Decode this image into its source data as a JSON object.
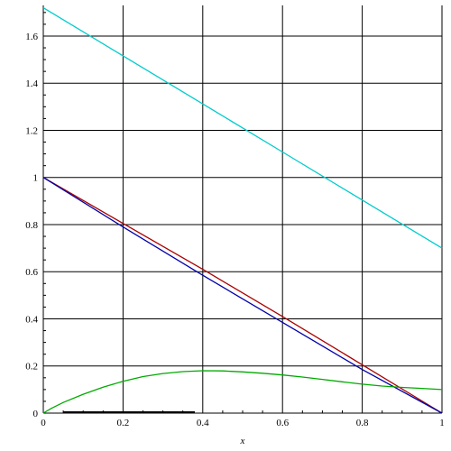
{
  "chart_data": {
    "type": "line",
    "xlabel": "x",
    "ylabel": "",
    "xlim": [
      0,
      1
    ],
    "ylim": [
      0,
      1.73
    ],
    "grid": true,
    "x_ticks": [
      0,
      0.2,
      0.4,
      0.6,
      0.8,
      1
    ],
    "x_tick_labels": [
      "0",
      "0.2",
      "0.4",
      "0.6",
      "0.8",
      "1"
    ],
    "y_ticks": [
      0,
      0.2,
      0.4,
      0.6,
      0.8,
      1,
      1.2,
      1.4,
      1.6
    ],
    "y_tick_labels": [
      "0",
      "0.2",
      "0.4",
      "0.6",
      "0.8",
      "1",
      "1.2",
      "1.4",
      "1.6"
    ],
    "series": [
      {
        "color": "#00cccc",
        "x": [
          0,
          0.2,
          0.4,
          0.6,
          0.8,
          1
        ],
        "y": [
          1.72,
          1.516,
          1.312,
          1.108,
          0.904,
          0.7
        ]
      },
      {
        "color": "#aa0000",
        "x": [
          0,
          0.2,
          0.4,
          0.6,
          0.8,
          1
        ],
        "y": [
          1,
          0.805,
          0.61,
          0.41,
          0.205,
          0
        ]
      },
      {
        "color": "#0000aa",
        "x": [
          0,
          0.2,
          0.4,
          0.6,
          0.8,
          1
        ],
        "y": [
          1,
          0.79,
          0.585,
          0.385,
          0.185,
          0
        ]
      },
      {
        "color": "#00aa00",
        "x": [
          0,
          0.02,
          0.05,
          0.1,
          0.15,
          0.2,
          0.25,
          0.3,
          0.35,
          0.4,
          0.45,
          0.5,
          0.55,
          0.6,
          0.65,
          0.7,
          0.75,
          0.8,
          0.85,
          0.9,
          0.95,
          1
        ],
        "y": [
          0,
          0.02,
          0.045,
          0.08,
          0.11,
          0.135,
          0.155,
          0.168,
          0.176,
          0.18,
          0.179,
          0.175,
          0.169,
          0.162,
          0.153,
          0.143,
          0.133,
          0.123,
          0.115,
          0.109,
          0.105,
          0.1
        ]
      },
      {
        "color": "#000000",
        "x": [
          0.05,
          0.38
        ],
        "y": [
          0.003,
          0.003
        ]
      }
    ]
  }
}
